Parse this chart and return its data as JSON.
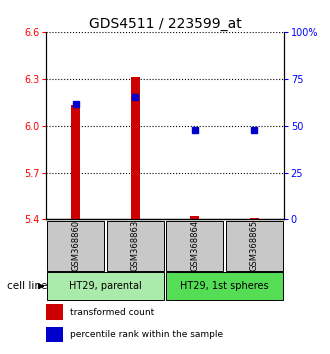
{
  "title": "GDS4511 / 223599_at",
  "samples": [
    "GSM368860",
    "GSM368863",
    "GSM368864",
    "GSM368865"
  ],
  "red_values": [
    6.13,
    6.31,
    5.42,
    5.41
  ],
  "blue_values": [
    6.14,
    6.18,
    5.97,
    5.97
  ],
  "ylim_left": [
    5.4,
    6.6
  ],
  "ylim_right": [
    0,
    100
  ],
  "yticks_left": [
    5.4,
    5.7,
    6.0,
    6.3,
    6.6
  ],
  "yticks_right": [
    0,
    25,
    50,
    75,
    100
  ],
  "yticklabels_right": [
    "0",
    "25",
    "50",
    "75",
    "100%"
  ],
  "dotted_lines": [
    5.7,
    6.0,
    6.3,
    6.6
  ],
  "groups": [
    {
      "label": "HT29, parental",
      "indices": [
        0,
        1
      ],
      "color": "#aaeaaa"
    },
    {
      "label": "HT29, 1st spheres",
      "indices": [
        2,
        3
      ],
      "color": "#55dd55"
    }
  ],
  "bar_bottom": 5.4,
  "bar_color": "#cc0000",
  "blue_marker_color": "#0000cc",
  "sample_box_color": "#c8c8c8",
  "legend_red_label": "transformed count",
  "legend_blue_label": "percentile rank within the sample",
  "cell_line_label": "cell line",
  "title_fontsize": 10,
  "tick_fontsize": 7,
  "bar_width": 0.15
}
